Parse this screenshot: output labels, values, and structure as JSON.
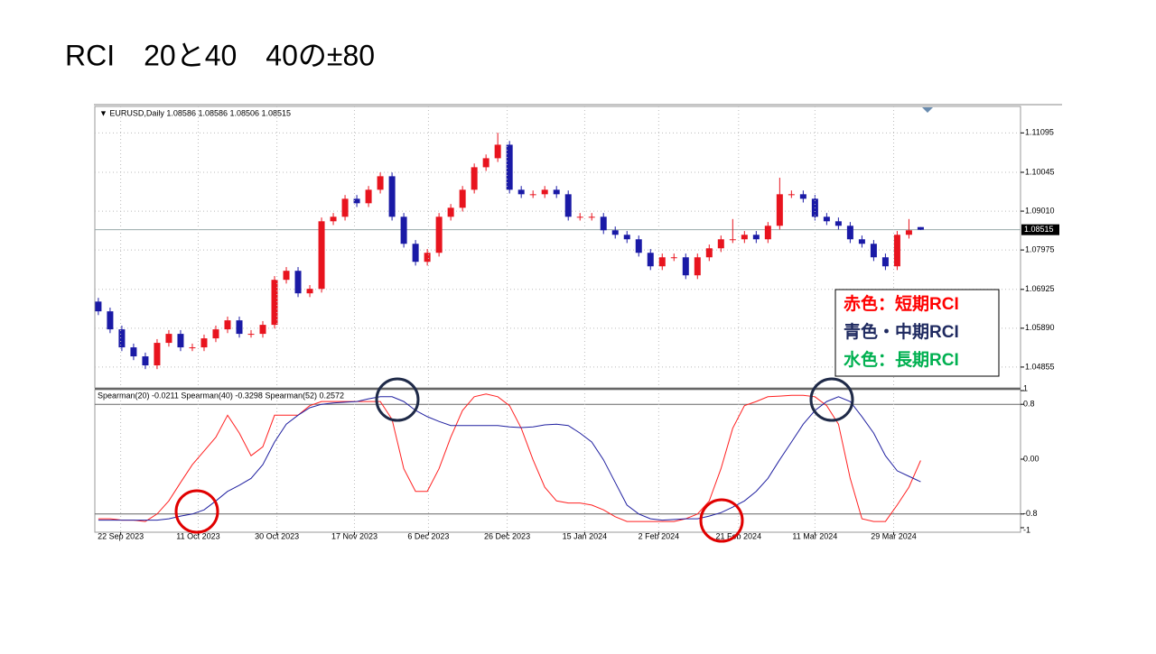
{
  "title": "RCI　20と40　40の±80",
  "chart_data": [
    {
      "type": "candlestick",
      "header": "▼ EURUSD,Daily  1.08586 1.08586 1.08506 1.08515",
      "up_color": "#e8141e",
      "down_color": "#1a1aa6",
      "open": [
        1.066,
        1.0634,
        1.0586,
        1.0538,
        1.0514,
        1.049,
        1.055,
        1.0574,
        1.0538,
        1.0538,
        1.0562,
        1.0586,
        1.061,
        1.0574,
        1.0574,
        1.0598,
        1.0718,
        1.0742,
        1.0682,
        1.0694,
        1.0874,
        1.0886,
        1.0934,
        1.0922,
        1.0958,
        1.0994,
        1.0886,
        1.0814,
        1.0766,
        1.079,
        1.0886,
        1.091,
        1.0958,
        1.1018,
        1.1042,
        1.1078,
        1.0958,
        1.0946,
        1.0946,
        1.0958,
        1.0946,
        1.0886,
        1.0886,
        1.0886,
        1.085,
        1.0838,
        1.0826,
        1.079,
        1.0754,
        1.0778,
        1.0778,
        1.073,
        1.0778,
        1.0802,
        1.0826,
        1.0826,
        1.0838,
        1.0826,
        1.0862,
        1.0946,
        1.0946,
        1.0934,
        1.0886,
        1.0874,
        1.0862,
        1.0826,
        1.0814,
        1.0778,
        1.0754,
        1.0838,
        1.08586
      ],
      "high": [
        1.067,
        1.0644,
        1.0596,
        1.0548,
        1.0524,
        1.056,
        1.0584,
        1.0584,
        1.0548,
        1.0572,
        1.0596,
        1.062,
        1.062,
        1.0584,
        1.0608,
        1.0728,
        1.0752,
        1.0752,
        1.0704,
        1.0884,
        1.0896,
        1.0944,
        1.0944,
        1.0968,
        1.1004,
        1.1004,
        1.0896,
        1.0824,
        1.08,
        1.0896,
        1.092,
        1.0968,
        1.1028,
        1.1052,
        1.111,
        1.1088,
        1.0968,
        1.0956,
        1.0968,
        1.0968,
        1.0956,
        1.0896,
        1.0896,
        1.0896,
        1.086,
        1.0848,
        1.0836,
        1.08,
        1.0788,
        1.0788,
        1.0788,
        1.0788,
        1.0812,
        1.0836,
        1.088,
        1.0848,
        1.0848,
        1.0872,
        1.099,
        1.0956,
        1.0956,
        1.0944,
        1.0896,
        1.0884,
        1.0872,
        1.0836,
        1.0824,
        1.0788,
        1.0848,
        1.088,
        1.08586
      ],
      "low": [
        1.0624,
        1.0576,
        1.0528,
        1.0504,
        1.048,
        1.048,
        1.054,
        1.0528,
        1.0528,
        1.0528,
        1.0552,
        1.0576,
        1.0564,
        1.0564,
        1.0564,
        1.0588,
        1.0708,
        1.0672,
        1.0672,
        1.0684,
        1.0864,
        1.0876,
        1.0912,
        1.0912,
        1.0948,
        1.0876,
        1.0804,
        1.0756,
        1.0756,
        1.078,
        1.0876,
        1.09,
        1.0948,
        1.1008,
        1.1032,
        1.0948,
        1.0936,
        1.0936,
        1.0936,
        1.0936,
        1.0876,
        1.0876,
        1.0876,
        1.084,
        1.0828,
        1.0816,
        1.078,
        1.0744,
        1.0744,
        1.0768,
        1.072,
        1.072,
        1.0768,
        1.0792,
        1.0816,
        1.0816,
        1.0816,
        1.0816,
        1.0852,
        1.0936,
        1.0924,
        1.0876,
        1.0864,
        1.0852,
        1.0816,
        1.0804,
        1.0768,
        1.0744,
        1.0744,
        1.0828,
        1.08506
      ],
      "close": [
        1.0634,
        1.0586,
        1.0538,
        1.0514,
        1.049,
        1.055,
        1.0574,
        1.0538,
        1.0538,
        1.0562,
        1.0586,
        1.061,
        1.0574,
        1.0574,
        1.0598,
        1.0718,
        1.0742,
        1.0682,
        1.0694,
        1.0874,
        1.0886,
        1.0934,
        1.0922,
        1.0958,
        1.0994,
        1.0886,
        1.0814,
        1.0766,
        1.079,
        1.0886,
        1.091,
        1.0958,
        1.1018,
        1.1042,
        1.1078,
        1.0958,
        1.0946,
        1.0946,
        1.0958,
        1.0946,
        1.0886,
        1.0886,
        1.0886,
        1.085,
        1.0838,
        1.0826,
        1.079,
        1.0754,
        1.0778,
        1.0778,
        1.073,
        1.0778,
        1.0802,
        1.0826,
        1.0826,
        1.0838,
        1.0826,
        1.0862,
        1.0946,
        1.0946,
        1.0934,
        1.0886,
        1.0874,
        1.0862,
        1.0826,
        1.0814,
        1.0778,
        1.0754,
        1.0838,
        1.085,
        1.08515
      ],
      "current_price": {
        "value": 1.08515,
        "label": "1.08515"
      },
      "xlim": [
        -0.3,
        78.5
      ],
      "ylim": [
        1.043,
        1.118
      ],
      "yticks": [
        1.11095,
        1.10045,
        {
          "value": 1.0901,
          "label": "1.09010"
        },
        1.07975,
        1.06925,
        {
          "value": 1.0589,
          "label": "1.05890"
        },
        1.04855
      ],
      "grid": true
    },
    {
      "type": "line",
      "header": "Spearman(20) -0.0211  Spearman(40) -0.3298  Spearman(52) 0.2572",
      "series": [
        {
          "name": "Spearman(20)",
          "color": "#ff2020",
          "values": [
            -0.87,
            -0.87,
            -0.89,
            -0.89,
            -0.91,
            -0.8,
            -0.61,
            -0.34,
            -0.08,
            0.12,
            0.32,
            0.64,
            0.38,
            0.05,
            0.18,
            0.64,
            0.64,
            0.64,
            0.78,
            0.84,
            0.84,
            0.84,
            0.84,
            0.84,
            0.84,
            0.58,
            -0.14,
            -0.47,
            -0.47,
            -0.14,
            0.32,
            0.71,
            0.91,
            0.95,
            0.91,
            0.78,
            0.45,
            -0.01,
            -0.41,
            -0.61,
            -0.64,
            -0.64,
            -0.67,
            -0.74,
            -0.84,
            -0.91,
            -0.91,
            -0.91,
            -0.91,
            -0.91,
            -0.87,
            -0.8,
            -0.61,
            -0.14,
            0.45,
            0.78,
            0.84,
            0.91,
            0.92,
            0.93,
            0.93,
            0.91,
            0.78,
            0.51,
            -0.28,
            -0.87,
            -0.91,
            -0.91,
            -0.67,
            -0.41,
            -0.02
          ]
        },
        {
          "name": "Spearman(40)",
          "color": "#2020a0",
          "values": [
            -0.89,
            -0.89,
            -0.89,
            -0.89,
            -0.89,
            -0.89,
            -0.87,
            -0.83,
            -0.8,
            -0.74,
            -0.61,
            -0.47,
            -0.38,
            -0.28,
            -0.08,
            0.25,
            0.51,
            0.64,
            0.75,
            0.8,
            0.82,
            0.83,
            0.84,
            0.88,
            0.91,
            0.91,
            0.84,
            0.71,
            0.62,
            0.55,
            0.49,
            0.49,
            0.49,
            0.49,
            0.49,
            0.47,
            0.46,
            0.47,
            0.5,
            0.51,
            0.49,
            0.38,
            0.25,
            -0.01,
            -0.34,
            -0.67,
            -0.8,
            -0.87,
            -0.89,
            -0.88,
            -0.87,
            -0.87,
            -0.83,
            -0.78,
            -0.7,
            -0.61,
            -0.47,
            -0.28,
            -0.01,
            0.25,
            0.51,
            0.71,
            0.84,
            0.91,
            0.84,
            0.62,
            0.38,
            0.05,
            -0.17,
            -0.25,
            -0.33
          ]
        }
      ],
      "xlim": [
        -0.3,
        78.5
      ],
      "ylim": [
        -1.066,
        1.013
      ],
      "yticks": [
        1,
        0.8,
        {
          "value": 0,
          "label": "0.00"
        },
        -0.8,
        -1
      ],
      "levels": [
        0.8,
        -0.8
      ],
      "xticks": [
        {
          "value": 1.9,
          "label": "22 Sep 2023"
        },
        {
          "value": 8.5,
          "label": "11 Oct 2023"
        },
        {
          "value": 15.2,
          "label": "30 Oct 2023"
        },
        {
          "value": 21.8,
          "label": "17 Nov 2023"
        },
        {
          "value": 28.1,
          "label": "6 Dec 2023"
        },
        {
          "value": 34.8,
          "label": "26 Dec 2023"
        },
        {
          "value": 41.4,
          "label": "15 Jan 2024"
        },
        {
          "value": 47.7,
          "label": "2 Feb 2024"
        },
        {
          "value": 54.5,
          "label": "21 Feb 2024"
        },
        {
          "value": 61,
          "label": "11 Mar 2024"
        },
        {
          "value": 67.7,
          "label": "29 Mar 2024"
        }
      ],
      "grid": true
    }
  ],
  "legend_box": [
    {
      "label": "赤色：短期RCI",
      "color": "#ff0000"
    },
    {
      "label": "青色・中期RCI",
      "color": "#1f2a60"
    },
    {
      "label": "水色：長期RCI",
      "color": "#00b050"
    }
  ]
}
